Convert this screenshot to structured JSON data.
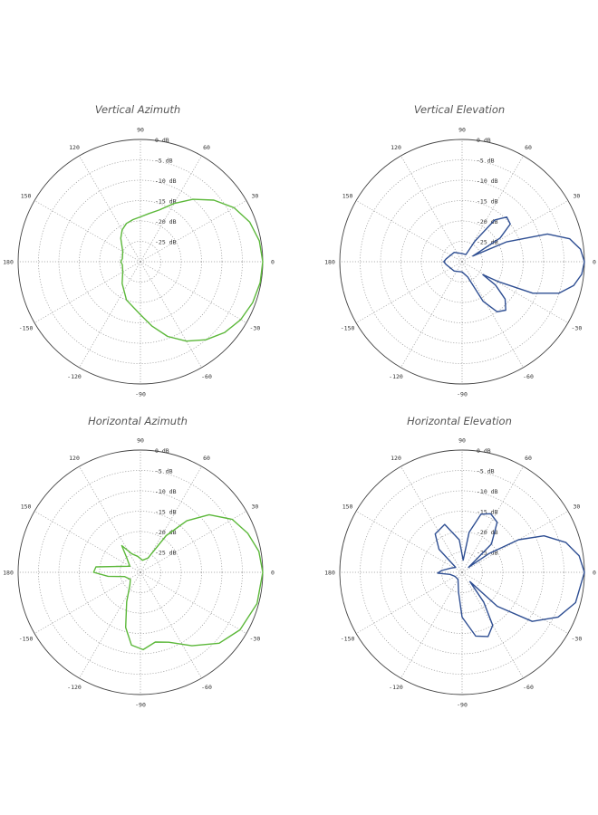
{
  "colors": {
    "green": "#5cb83a",
    "blue": "#2f4f93",
    "grid": "#9a9a9a",
    "text": "#333333"
  },
  "chart_data": [
    {
      "type": "polar",
      "title": "Vertical Azimuth",
      "series_color": "green",
      "angle_ticks": [
        "30",
        "60",
        "90",
        "120",
        "150",
        "180",
        "-150",
        "-120",
        "-90",
        "-60",
        "-30",
        "0"
      ],
      "ring_labels": [
        "0 dB",
        "-5 dB",
        "-10 dB",
        "-15 dB",
        "-20 dB",
        "-25 dB"
      ],
      "r_range_db": [
        -30,
        0
      ],
      "pattern": [
        {
          "deg": 0,
          "db": 0
        },
        {
          "deg": 10,
          "db": -0.4
        },
        {
          "deg": 20,
          "db": -1.5
        },
        {
          "deg": 30,
          "db": -3.5
        },
        {
          "deg": 40,
          "db": -6.5
        },
        {
          "deg": 50,
          "db": -10
        },
        {
          "deg": 60,
          "db": -13.5
        },
        {
          "deg": 70,
          "db": -16.5
        },
        {
          "deg": 80,
          "db": -18
        },
        {
          "deg": 90,
          "db": -19
        },
        {
          "deg": 100,
          "db": -19.5
        },
        {
          "deg": 110,
          "db": -20
        },
        {
          "deg": 120,
          "db": -21
        },
        {
          "deg": 130,
          "db": -22.5
        },
        {
          "deg": 150,
          "db": -25
        },
        {
          "deg": 170,
          "db": -25.5
        },
        {
          "deg": 180,
          "db": -25.2
        },
        {
          "deg": 190,
          "db": -25.5
        },
        {
          "deg": 210,
          "db": -25
        },
        {
          "deg": 230,
          "db": -23
        },
        {
          "deg": 250,
          "db": -20
        },
        {
          "deg": 270,
          "db": -17
        },
        {
          "deg": 280,
          "db": -14
        },
        {
          "deg": 290,
          "db": -10.5
        },
        {
          "deg": 300,
          "db": -7.5
        },
        {
          "deg": 310,
          "db": -5
        },
        {
          "deg": 320,
          "db": -3
        },
        {
          "deg": 330,
          "db": -1.6
        },
        {
          "deg": 340,
          "db": -0.7
        },
        {
          "deg": 350,
          "db": -0.2
        },
        {
          "deg": 360,
          "db": 0
        }
      ]
    },
    {
      "type": "polar",
      "title": "Vertical Elevation",
      "series_color": "blue",
      "angle_ticks": [
        "30",
        "60",
        "90",
        "120",
        "150",
        "180",
        "-150",
        "-120",
        "-90",
        "-60",
        "-30",
        "0"
      ],
      "ring_labels": [
        "0 dB",
        "-5 dB",
        "-10 dB",
        "-15 dB",
        "-20 dB",
        "-25 dB"
      ],
      "r_range_db": [
        -30,
        0
      ],
      "pattern": [
        {
          "deg": 0,
          "db": 0
        },
        {
          "deg": 6,
          "db": -0.8
        },
        {
          "deg": 12,
          "db": -3
        },
        {
          "deg": 18,
          "db": -8
        },
        {
          "deg": 24,
          "db": -18
        },
        {
          "deg": 28,
          "db": -27
        },
        {
          "deg": 32,
          "db": -19
        },
        {
          "deg": 38,
          "db": -15
        },
        {
          "deg": 45,
          "db": -14.5
        },
        {
          "deg": 52,
          "db": -17
        },
        {
          "deg": 58,
          "db": -24
        },
        {
          "deg": 62,
          "db": -28
        },
        {
          "deg": 90,
          "db": -28
        },
        {
          "deg": 130,
          "db": -27
        },
        {
          "deg": 170,
          "db": -26
        },
        {
          "deg": 180,
          "db": -25.5
        },
        {
          "deg": 190,
          "db": -26
        },
        {
          "deg": 230,
          "db": -27
        },
        {
          "deg": 270,
          "db": -27.5
        },
        {
          "deg": 290,
          "db": -26
        },
        {
          "deg": 298,
          "db": -19
        },
        {
          "deg": 305,
          "db": -15
        },
        {
          "deg": 312,
          "db": -14
        },
        {
          "deg": 319,
          "db": -16
        },
        {
          "deg": 325,
          "db": -20
        },
        {
          "deg": 328,
          "db": -24
        },
        {
          "deg": 331,
          "db": -20
        },
        {
          "deg": 336,
          "db": -11
        },
        {
          "deg": 342,
          "db": -5
        },
        {
          "deg": 348,
          "db": -2
        },
        {
          "deg": 354,
          "db": -0.5
        },
        {
          "deg": 360,
          "db": 0
        }
      ]
    },
    {
      "type": "polar",
      "title": "Horizontal Azimuth",
      "series_color": "green",
      "angle_ticks": [
        "30",
        "60",
        "90",
        "120",
        "150",
        "180",
        "-150",
        "-120",
        "-90",
        "-60",
        "-30",
        "0"
      ],
      "ring_labels": [
        "0 dB",
        "-5 dB",
        "-10 dB",
        "-15 dB",
        "-20 dB",
        "-25 dB"
      ],
      "r_range_db": [
        -30,
        0
      ],
      "pattern": [
        {
          "deg": 0,
          "db": 0
        },
        {
          "deg": 10,
          "db": -0.5
        },
        {
          "deg": 20,
          "db": -2
        },
        {
          "deg": 30,
          "db": -4
        },
        {
          "deg": 40,
          "db": -8
        },
        {
          "deg": 48,
          "db": -13
        },
        {
          "deg": 55,
          "db": -19
        },
        {
          "deg": 62,
          "db": -26
        },
        {
          "deg": 80,
          "db": -27
        },
        {
          "deg": 100,
          "db": -26
        },
        {
          "deg": 115,
          "db": -25
        },
        {
          "deg": 125,
          "db": -22
        },
        {
          "deg": 133,
          "db": -25
        },
        {
          "deg": 150,
          "db": -27
        },
        {
          "deg": 166,
          "db": -24
        },
        {
          "deg": 173,
          "db": -19
        },
        {
          "deg": 180,
          "db": -18.5
        },
        {
          "deg": 187,
          "db": -22
        },
        {
          "deg": 195,
          "db": -26
        },
        {
          "deg": 215,
          "db": -27
        },
        {
          "deg": 230,
          "db": -26
        },
        {
          "deg": 245,
          "db": -22
        },
        {
          "deg": 255,
          "db": -16
        },
        {
          "deg": 263,
          "db": -12
        },
        {
          "deg": 272,
          "db": -11
        },
        {
          "deg": 282,
          "db": -12.5
        },
        {
          "deg": 292,
          "db": -11.5
        },
        {
          "deg": 305,
          "db": -8
        },
        {
          "deg": 318,
          "db": -4
        },
        {
          "deg": 330,
          "db": -1.8
        },
        {
          "deg": 345,
          "db": -0.4
        },
        {
          "deg": 360,
          "db": 0
        }
      ]
    },
    {
      "type": "polar",
      "title": "Horizontal Elevation",
      "series_color": "blue",
      "angle_ticks": [
        "30",
        "60",
        "90",
        "120",
        "150",
        "180",
        "-150",
        "-120",
        "-90",
        "-60",
        "-30",
        "0"
      ],
      "ring_labels": [
        "0 dB",
        "-5 dB",
        "-10 dB",
        "-15 dB",
        "-20 dB",
        "-25 dB"
      ],
      "r_range_db": [
        -30,
        0
      ],
      "pattern": [
        {
          "deg": 0,
          "db": 0
        },
        {
          "deg": 8,
          "db": -1
        },
        {
          "deg": 16,
          "db": -3.5
        },
        {
          "deg": 24,
          "db": -8
        },
        {
          "deg": 30,
          "db": -14
        },
        {
          "deg": 35,
          "db": -22
        },
        {
          "deg": 38,
          "db": -28
        },
        {
          "deg": 44,
          "db": -20
        },
        {
          "deg": 55,
          "db": -15
        },
        {
          "deg": 64,
          "db": -14
        },
        {
          "deg": 72,
          "db": -15
        },
        {
          "deg": 80,
          "db": -20
        },
        {
          "deg": 85,
          "db": -27
        },
        {
          "deg": 95,
          "db": -22
        },
        {
          "deg": 110,
          "db": -17.5
        },
        {
          "deg": 125,
          "db": -18.5
        },
        {
          "deg": 135,
          "db": -22
        },
        {
          "deg": 142,
          "db": -28
        },
        {
          "deg": 160,
          "db": -27
        },
        {
          "deg": 175,
          "db": -25
        },
        {
          "deg": 182,
          "db": -24
        },
        {
          "deg": 190,
          "db": -27
        },
        {
          "deg": 210,
          "db": -28
        },
        {
          "deg": 240,
          "db": -28
        },
        {
          "deg": 260,
          "db": -25
        },
        {
          "deg": 270,
          "db": -19
        },
        {
          "deg": 282,
          "db": -14
        },
        {
          "deg": 292,
          "db": -13
        },
        {
          "deg": 300,
          "db": -15
        },
        {
          "deg": 306,
          "db": -21
        },
        {
          "deg": 310,
          "db": -27
        },
        {
          "deg": 316,
          "db": -18
        },
        {
          "deg": 325,
          "db": -9
        },
        {
          "deg": 335,
          "db": -4
        },
        {
          "deg": 345,
          "db": -1.2
        },
        {
          "deg": 360,
          "db": 0
        }
      ]
    }
  ]
}
